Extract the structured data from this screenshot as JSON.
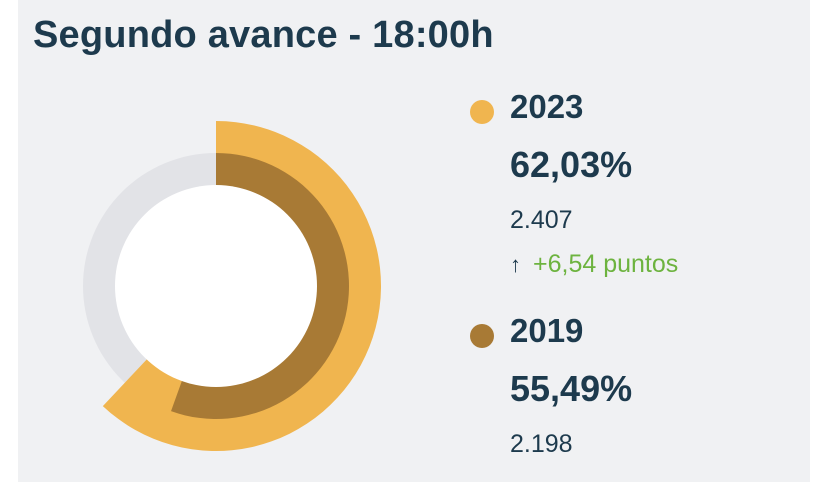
{
  "title": "Segundo avance - 18:00h",
  "colors": {
    "y2023": "#f0b54f",
    "y2019": "#a87a35",
    "track": "#e2e3e7",
    "text": "#1d3a4d",
    "positive": "#6db33f"
  },
  "chart_data": {
    "type": "radial-bar",
    "max": 100,
    "series": [
      {
        "name": "2023",
        "value": 62.03,
        "value_label": "62,03%",
        "count": "2.407",
        "change_icon": "arrow-up-icon",
        "change_label": "+6,54 puntos"
      },
      {
        "name": "2019",
        "value": 55.49,
        "value_label": "55,49%",
        "count": "2.198"
      }
    ]
  }
}
